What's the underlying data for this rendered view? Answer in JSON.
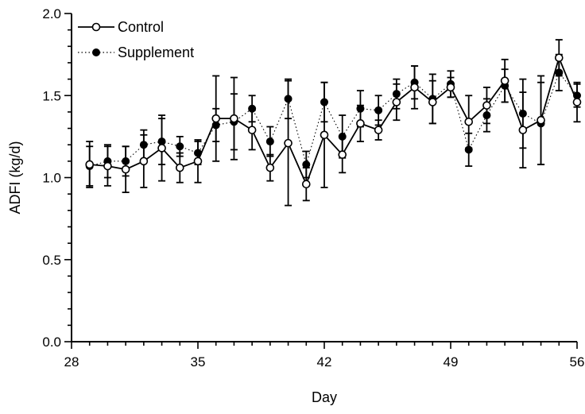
{
  "chart_data": {
    "type": "line",
    "title": "",
    "xlabel": "Day",
    "ylabel": "ADFI (kg/d)",
    "xlim": [
      28,
      56
    ],
    "ylim": [
      0.0,
      2.0
    ],
    "x_major_ticks": [
      28,
      35,
      42,
      49,
      56
    ],
    "x_tick_labels": [
      "28",
      "35",
      "42",
      "49",
      "56"
    ],
    "y_major_ticks": [
      0.0,
      0.5,
      1.0,
      1.5,
      2.0
    ],
    "y_tick_labels": [
      "0.0",
      "0.5",
      "1.0",
      "1.5",
      "2.0"
    ],
    "grid": false,
    "legend_position": "top-left",
    "series": [
      {
        "name": "Control",
        "marker": "open-circle",
        "line_style": "solid",
        "x": [
          29,
          30,
          31,
          32,
          33,
          34,
          35,
          36,
          37,
          38,
          39,
          40,
          41,
          42,
          43,
          44,
          45,
          46,
          47,
          48,
          49,
          50,
          51,
          52,
          53,
          54,
          55,
          56
        ],
        "y": [
          1.08,
          1.07,
          1.05,
          1.1,
          1.18,
          1.06,
          1.1,
          1.36,
          1.36,
          1.29,
          1.06,
          1.21,
          0.96,
          1.26,
          1.14,
          1.33,
          1.29,
          1.46,
          1.55,
          1.46,
          1.55,
          1.34,
          1.44,
          1.59,
          1.29,
          1.35,
          1.73,
          1.46
        ],
        "error": [
          0.14,
          0.12,
          0.14,
          0.16,
          0.2,
          0.09,
          0.13,
          0.26,
          0.25,
          0.12,
          0.08,
          0.38,
          0.1,
          0.32,
          0.11,
          0.11,
          0.06,
          0.11,
          0.13,
          0.13,
          0.06,
          0.16,
          0.11,
          0.13,
          0.23,
          0.27,
          0.11,
          0.12
        ]
      },
      {
        "name": "Supplement",
        "marker": "filled-circle",
        "line_style": "dotted",
        "x": [
          29,
          30,
          31,
          32,
          33,
          34,
          35,
          36,
          37,
          38,
          39,
          40,
          41,
          42,
          43,
          44,
          45,
          46,
          47,
          48,
          49,
          50,
          51,
          52,
          53,
          54,
          55,
          56
        ],
        "y": [
          1.07,
          1.1,
          1.1,
          1.2,
          1.22,
          1.19,
          1.15,
          1.32,
          1.34,
          1.42,
          1.22,
          1.48,
          1.08,
          1.46,
          1.25,
          1.42,
          1.41,
          1.51,
          1.58,
          1.48,
          1.57,
          1.17,
          1.38,
          1.56,
          1.39,
          1.33,
          1.64,
          1.5
        ],
        "error": [
          0.12,
          0.1,
          0.09,
          0.09,
          0.14,
          0.06,
          0.07,
          0.1,
          0.17,
          0.08,
          0.09,
          0.12,
          0.08,
          0.12,
          0.13,
          0.11,
          0.09,
          0.09,
          0.1,
          0.15,
          0.08,
          0.1,
          0.1,
          0.1,
          0.21,
          0.25,
          0.11,
          0.07
        ]
      }
    ]
  }
}
